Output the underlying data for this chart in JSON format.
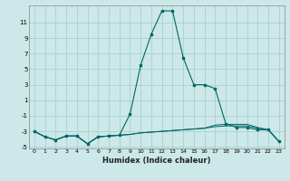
{
  "xlabel": "Humidex (Indice chaleur)",
  "background_color": "#cce8e8",
  "line_color": "#006666",
  "grid_color": "#aacfcf",
  "x_values": [
    0,
    1,
    2,
    3,
    4,
    5,
    6,
    7,
    8,
    9,
    10,
    11,
    12,
    13,
    14,
    15,
    16,
    17,
    18,
    19,
    20,
    21,
    22,
    23
  ],
  "y_main": [
    -3,
    -3.7,
    -4.1,
    -3.6,
    -3.6,
    -4.6,
    -3.7,
    -3.6,
    -3.5,
    -0.8,
    5.5,
    9.5,
    12.5,
    12.5,
    6.5,
    3.0,
    3.0,
    2.5,
    -2.0,
    -2.5,
    -2.5,
    -2.8,
    -2.8,
    -4.3
  ],
  "y_series2": [
    -3,
    -3.7,
    -4.1,
    -3.6,
    -3.6,
    -4.6,
    -3.7,
    -3.6,
    -3.5,
    -3.4,
    -3.2,
    -3.1,
    -3.0,
    -2.9,
    -2.8,
    -2.7,
    -2.6,
    -2.4,
    -2.3,
    -2.3,
    -2.3,
    -2.6,
    -2.8,
    -4.3
  ],
  "y_series3": [
    -3,
    -3.7,
    -4.1,
    -3.6,
    -3.6,
    -4.6,
    -3.7,
    -3.6,
    -3.5,
    -3.4,
    -3.2,
    -3.1,
    -3.0,
    -2.9,
    -2.8,
    -2.7,
    -2.6,
    -2.2,
    -2.1,
    -2.1,
    -2.1,
    -2.5,
    -2.8,
    -4.3
  ],
  "xlim": [
    -0.5,
    23.5
  ],
  "ylim": [
    -5.2,
    13.2
  ],
  "yticks": [
    -5,
    -3,
    -1,
    1,
    3,
    5,
    7,
    9,
    11
  ],
  "xticks": [
    0,
    1,
    2,
    3,
    4,
    5,
    6,
    7,
    8,
    9,
    10,
    11,
    12,
    13,
    14,
    15,
    16,
    17,
    18,
    19,
    20,
    21,
    22,
    23
  ]
}
